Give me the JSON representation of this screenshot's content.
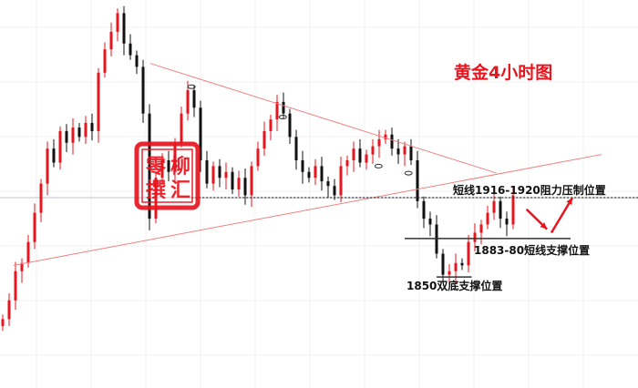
{
  "chart_data": {
    "type": "candlestick",
    "title": "黄金4小时图",
    "title_color": "#e8141e",
    "up_color": "#e8141e",
    "down_color": "#111111",
    "grid": true,
    "ylim": [
      1805,
      2090
    ],
    "close": [
      1814,
      1830,
      1855,
      1862,
      1880,
      1905,
      1930,
      1960,
      1948,
      1975,
      1965,
      1978,
      1970,
      1982,
      1975,
      2025,
      2045,
      2060,
      2076,
      2050,
      2040,
      2030,
      1990,
      1900,
      1935,
      1950,
      1940,
      1965,
      1990,
      2010,
      1995,
      1950,
      1930,
      1945,
      1935,
      1940,
      1925,
      1935,
      1920,
      1945,
      1960,
      1975,
      1985,
      2000,
      1990,
      1970,
      1950,
      1940,
      1935,
      1945,
      1932,
      1928,
      1920,
      1945,
      1950,
      1960,
      1948,
      1955,
      1962,
      1968,
      1972,
      1960,
      1955,
      1962,
      1950,
      1915,
      1900,
      1895,
      1870,
      1852,
      1855,
      1862,
      1860,
      1880,
      1888,
      1895,
      1905,
      1915,
      1900,
      1895,
      1920
    ],
    "trendlines": [
      {
        "from": [
          23.1,
          2033
        ],
        "to": [
          77.4,
          1939
        ],
        "color": "#f08080"
      },
      {
        "from": [
          1.7,
          1860
        ],
        "to": [
          93.9,
          1955
        ],
        "color": "#f08080"
      }
    ],
    "levels": [
      {
        "price": 1918,
        "label": "短线1916-1920阻力压制位置",
        "from": 29.6,
        "to": 99.6,
        "style": "dashed"
      },
      {
        "price": 1883,
        "label": "1883-80短线支撑位置",
        "from": 63,
        "to": 89,
        "style": "solid"
      },
      {
        "price": 1850,
        "label": "1850双底支撑位置",
        "from": 68,
        "to": 73.5,
        "style": "solid"
      }
    ],
    "peak_markers": [
      [
        29.6,
        2013
      ],
      [
        43.9,
        1987
      ],
      [
        58.9,
        1945
      ],
      [
        63.6,
        1939
      ]
    ],
    "forecast_arrows": [
      {
        "from": [
          82.1,
          1908
        ],
        "to": [
          85.3,
          1891
        ]
      },
      {
        "from": [
          86,
          1888
        ],
        "to": [
          89.3,
          1918
        ]
      }
    ]
  },
  "watermark_seal": {
    "text": "柳汇零撰",
    "color": "#e8141e"
  }
}
